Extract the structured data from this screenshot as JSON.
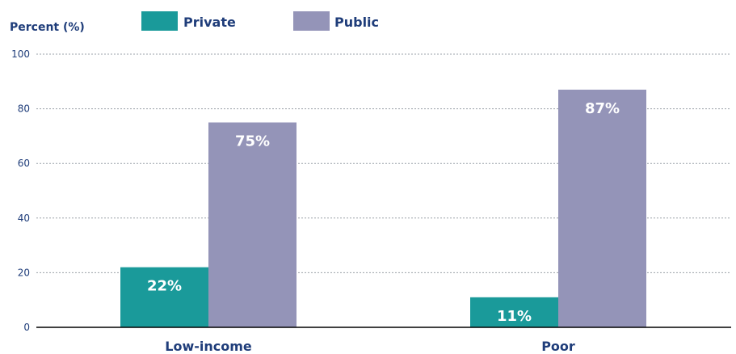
{
  "chart_data": {
    "type": "bar",
    "title": "",
    "ylabel": "Percent (%)",
    "xlabel": "",
    "ylim": [
      0,
      100
    ],
    "yticks": [
      0,
      20,
      40,
      60,
      80,
      100
    ],
    "grid": true,
    "legend_position": "top",
    "categories": [
      "Low-income",
      "Poor"
    ],
    "series": [
      {
        "name": "Private",
        "color": "#1a9a9a",
        "values": [
          22,
          11
        ],
        "labels": [
          "22%",
          "11%"
        ]
      },
      {
        "name": "Public",
        "color": "#9494b8",
        "values": [
          75,
          87
        ],
        "labels": [
          "75%",
          "87%"
        ]
      }
    ]
  }
}
